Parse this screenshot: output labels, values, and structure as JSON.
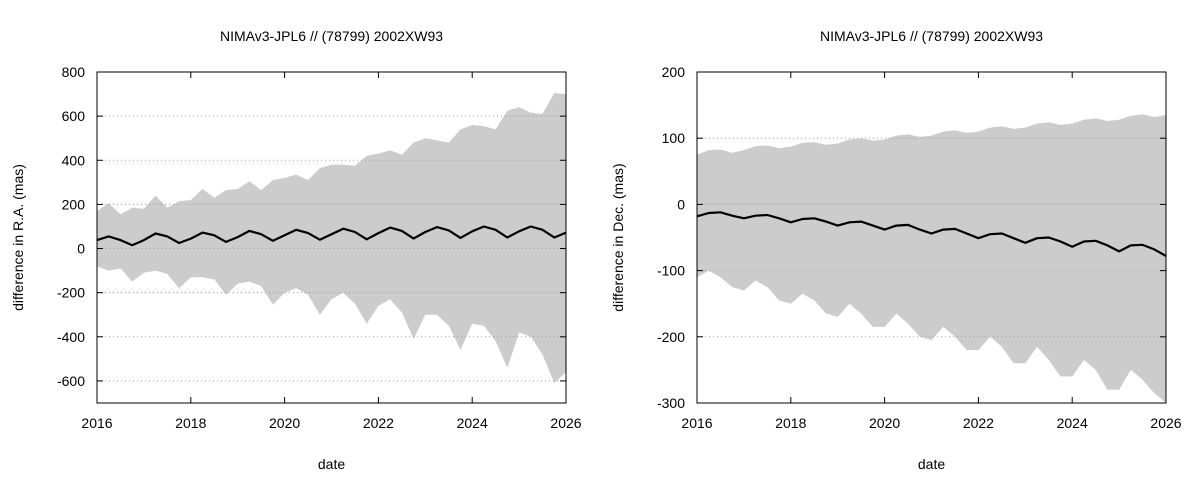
{
  "chart_data": [
    {
      "type": "area",
      "title": "NIMAv3-JPL6 // (78799) 2002XW93",
      "xlabel": "date",
      "ylabel": "difference in R.A. (mas)",
      "xlim": [
        2016,
        2026
      ],
      "ylim": [
        -700,
        800
      ],
      "xticks": [
        2016,
        2018,
        2020,
        2022,
        2024,
        2026
      ],
      "yticks": [
        -600,
        -400,
        -200,
        0,
        200,
        400,
        600,
        800
      ],
      "grid": "horizontal dotted",
      "band_color": "#cccccc",
      "line_color": "#000000",
      "series": [
        {
          "role": "uncertainty band upper",
          "x": [
            2016.0,
            2016.25,
            2016.5,
            2016.75,
            2017.0,
            2017.25,
            2017.5,
            2017.75,
            2018.0,
            2018.25,
            2018.5,
            2018.75,
            2019.0,
            2019.25,
            2019.5,
            2019.75,
            2020.0,
            2020.25,
            2020.5,
            2020.75,
            2021.0,
            2021.25,
            2021.5,
            2021.75,
            2022.0,
            2022.25,
            2022.5,
            2022.75,
            2023.0,
            2023.25,
            2023.5,
            2023.75,
            2024.0,
            2024.25,
            2024.5,
            2024.75,
            2025.0,
            2025.25,
            2025.5,
            2025.75,
            2026.0
          ],
          "values": [
            170,
            205,
            155,
            185,
            180,
            240,
            185,
            215,
            220,
            270,
            230,
            265,
            270,
            305,
            265,
            310,
            320,
            335,
            310,
            365,
            380,
            380,
            375,
            420,
            430,
            445,
            425,
            480,
            500,
            490,
            480,
            540,
            560,
            555,
            540,
            625,
            640,
            615,
            610,
            705,
            700
          ]
        },
        {
          "role": "uncertainty band lower",
          "x": [
            2016.0,
            2016.25,
            2016.5,
            2016.75,
            2017.0,
            2017.25,
            2017.5,
            2017.75,
            2018.0,
            2018.25,
            2018.5,
            2018.75,
            2019.0,
            2019.25,
            2019.5,
            2019.75,
            2020.0,
            2020.25,
            2020.5,
            2020.75,
            2021.0,
            2021.25,
            2021.5,
            2021.75,
            2022.0,
            2022.25,
            2022.5,
            2022.75,
            2023.0,
            2023.25,
            2023.5,
            2023.75,
            2024.0,
            2024.25,
            2024.5,
            2024.75,
            2025.0,
            2025.25,
            2025.5,
            2025.75,
            2026.0
          ],
          "values": [
            -80,
            -100,
            -90,
            -150,
            -110,
            -100,
            -115,
            -180,
            -130,
            -130,
            -140,
            -210,
            -160,
            -150,
            -170,
            -255,
            -200,
            -180,
            -210,
            -300,
            -230,
            -200,
            -250,
            -340,
            -260,
            -230,
            -290,
            -410,
            -300,
            -300,
            -350,
            -460,
            -340,
            -350,
            -420,
            -540,
            -380,
            -400,
            -480,
            -610,
            -560
          ]
        },
        {
          "role": "mean difference",
          "x": [
            2016.0,
            2016.25,
            2016.5,
            2016.75,
            2017.0,
            2017.25,
            2017.5,
            2017.75,
            2018.0,
            2018.25,
            2018.5,
            2018.75,
            2019.0,
            2019.25,
            2019.5,
            2019.75,
            2020.0,
            2020.25,
            2020.5,
            2020.75,
            2021.0,
            2021.25,
            2021.5,
            2021.75,
            2022.0,
            2022.25,
            2022.5,
            2022.75,
            2023.0,
            2023.25,
            2023.5,
            2023.75,
            2024.0,
            2024.25,
            2024.5,
            2024.75,
            2025.0,
            2025.25,
            2025.5,
            2025.75,
            2026.0
          ],
          "values": [
            38,
            55,
            38,
            15,
            38,
            68,
            55,
            25,
            45,
            72,
            60,
            30,
            52,
            80,
            65,
            35,
            60,
            85,
            70,
            40,
            65,
            90,
            75,
            42,
            70,
            95,
            80,
            45,
            75,
            97,
            82,
            48,
            78,
            100,
            85,
            50,
            78,
            100,
            85,
            50,
            72
          ]
        }
      ]
    },
    {
      "type": "area",
      "title": "NIMAv3-JPL6 // (78799) 2002XW93",
      "xlabel": "date",
      "ylabel": "difference in Dec. (mas)",
      "xlim": [
        2016,
        2026
      ],
      "ylim": [
        -300,
        200
      ],
      "xticks": [
        2016,
        2018,
        2020,
        2022,
        2024,
        2026
      ],
      "yticks": [
        -300,
        -200,
        -100,
        0,
        100,
        200
      ],
      "grid": "horizontal dotted",
      "band_color": "#cccccc",
      "line_color": "#000000",
      "series": [
        {
          "role": "uncertainty band upper",
          "x": [
            2016.0,
            2016.25,
            2016.5,
            2016.75,
            2017.0,
            2017.25,
            2017.5,
            2017.75,
            2018.0,
            2018.25,
            2018.5,
            2018.75,
            2019.0,
            2019.25,
            2019.5,
            2019.75,
            2020.0,
            2020.25,
            2020.5,
            2020.75,
            2021.0,
            2021.25,
            2021.5,
            2021.75,
            2022.0,
            2022.25,
            2022.5,
            2022.75,
            2023.0,
            2023.25,
            2023.5,
            2023.75,
            2024.0,
            2024.25,
            2024.5,
            2024.75,
            2025.0,
            2025.25,
            2025.5,
            2025.75,
            2026.0
          ],
          "values": [
            75,
            82,
            83,
            78,
            82,
            88,
            89,
            85,
            87,
            93,
            94,
            90,
            92,
            98,
            100,
            96,
            98,
            104,
            106,
            102,
            104,
            110,
            112,
            108,
            110,
            116,
            118,
            114,
            116,
            122,
            124,
            120,
            122,
            128,
            130,
            126,
            128,
            134,
            136,
            132,
            135
          ]
        },
        {
          "role": "uncertainty band lower",
          "x": [
            2016.0,
            2016.25,
            2016.5,
            2016.75,
            2017.0,
            2017.25,
            2017.5,
            2017.75,
            2018.0,
            2018.25,
            2018.5,
            2018.75,
            2019.0,
            2019.25,
            2019.5,
            2019.75,
            2020.0,
            2020.25,
            2020.5,
            2020.75,
            2021.0,
            2021.25,
            2021.5,
            2021.75,
            2022.0,
            2022.25,
            2022.5,
            2022.75,
            2023.0,
            2023.25,
            2023.5,
            2023.75,
            2024.0,
            2024.25,
            2024.5,
            2024.75,
            2025.0,
            2025.25,
            2025.5,
            2025.75,
            2026.0
          ],
          "values": [
            -110,
            -100,
            -110,
            -125,
            -130,
            -115,
            -125,
            -145,
            -150,
            -135,
            -145,
            -165,
            -170,
            -150,
            -165,
            -185,
            -185,
            -165,
            -180,
            -200,
            -205,
            -185,
            -200,
            -220,
            -220,
            -200,
            -215,
            -240,
            -240,
            -215,
            -235,
            -260,
            -260,
            -235,
            -250,
            -280,
            -280,
            -250,
            -265,
            -285,
            -300
          ]
        },
        {
          "role": "mean difference",
          "x": [
            2016.0,
            2016.25,
            2016.5,
            2016.75,
            2017.0,
            2017.25,
            2017.5,
            2017.75,
            2018.0,
            2018.25,
            2018.5,
            2018.75,
            2019.0,
            2019.25,
            2019.5,
            2019.75,
            2020.0,
            2020.25,
            2020.5,
            2020.75,
            2021.0,
            2021.25,
            2021.5,
            2021.75,
            2022.0,
            2022.25,
            2022.5,
            2022.75,
            2023.0,
            2023.25,
            2023.5,
            2023.75,
            2024.0,
            2024.25,
            2024.5,
            2024.75,
            2025.0,
            2025.25,
            2025.5,
            2025.75,
            2026.0
          ],
          "values": [
            -18,
            -13,
            -12,
            -17,
            -21,
            -17,
            -16,
            -21,
            -27,
            -22,
            -21,
            -26,
            -32,
            -27,
            -26,
            -32,
            -38,
            -32,
            -31,
            -38,
            -44,
            -38,
            -37,
            -44,
            -51,
            -45,
            -44,
            -51,
            -58,
            -51,
            -50,
            -56,
            -64,
            -56,
            -55,
            -62,
            -71,
            -62,
            -61,
            -68,
            -78
          ]
        }
      ]
    }
  ]
}
